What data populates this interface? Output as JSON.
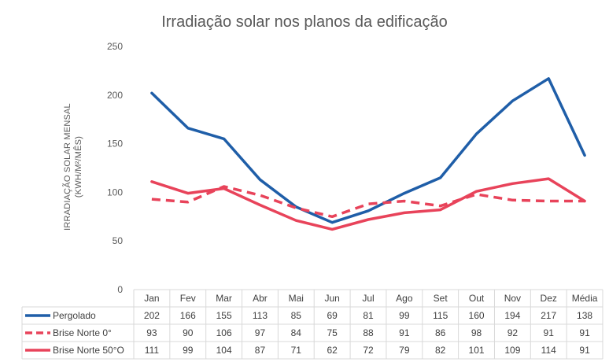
{
  "chart_data": {
    "type": "line",
    "title": "Irradiação solar nos planos da edificação",
    "ylabel": [
      "IRRADIAÇÃO SOLAR MENSAL",
      "(KWH/M²/MÊS)"
    ],
    "xlabel": "",
    "ylim": [
      0,
      250
    ],
    "yticks": [
      0,
      50,
      100,
      150,
      200,
      250
    ],
    "grid": false,
    "legend": "data table below plot",
    "categories": [
      "Jan",
      "Fev",
      "Mar",
      "Abr",
      "Mai",
      "Jun",
      "Jul",
      "Ago",
      "Set",
      "Out",
      "Nov",
      "Dez",
      "Média"
    ],
    "series": [
      {
        "name": "Pergolado",
        "color": "#1f5ea8",
        "dash": false,
        "values": [
          202,
          166,
          155,
          113,
          85,
          69,
          81,
          99,
          115,
          160,
          194,
          217,
          138
        ]
      },
      {
        "name": "Brise Norte 0°",
        "color": "#e8435a",
        "dash": true,
        "values": [
          93,
          90,
          106,
          97,
          84,
          75,
          88,
          91,
          86,
          98,
          92,
          91,
          91
        ]
      },
      {
        "name": "Brise Norte 50°O",
        "color": "#e8435a",
        "dash": false,
        "values": [
          111,
          99,
          104,
          87,
          71,
          62,
          72,
          79,
          82,
          101,
          109,
          114,
          91
        ]
      }
    ]
  }
}
